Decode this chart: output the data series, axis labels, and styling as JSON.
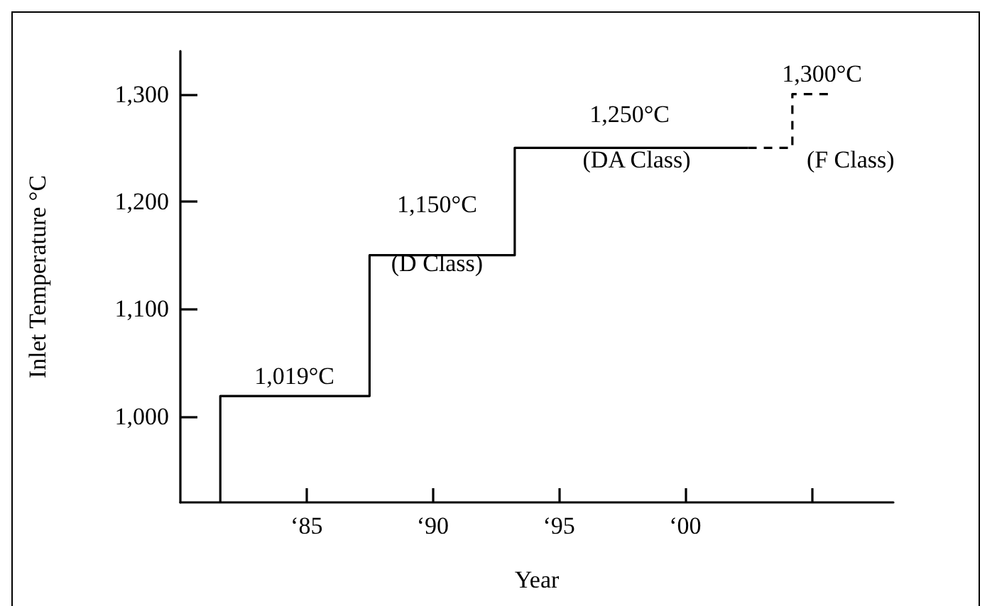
{
  "chart_data": {
    "type": "step",
    "xlabel": "Year",
    "ylabel": "Inlet Temperature °C",
    "xlim": [
      "1980-01",
      "2008-04"
    ],
    "ylim": [
      920,
      1340
    ],
    "xticks": [
      {
        "value": "1985",
        "label": "‘85"
      },
      {
        "value": "1990",
        "label": "‘90"
      },
      {
        "value": "1995",
        "label": "‘95"
      },
      {
        "value": "2000",
        "label": "‘00"
      },
      {
        "value": "2005",
        "label": null
      }
    ],
    "yticks": [
      {
        "value": 1000,
        "label": "1,000"
      },
      {
        "value": 1100,
        "label": "1,100"
      },
      {
        "value": 1200,
        "label": "1,200"
      },
      {
        "value": 1300,
        "label": "1,300"
      }
    ],
    "series": [
      {
        "color": "#000000",
        "line_style": "solid",
        "x": [
          "1981-08",
          "1981-08",
          "1987-07",
          "1993-04",
          "2002-07"
        ],
        "values": [
          920,
          1019,
          1150,
          1250,
          1250
        ]
      },
      {
        "color": "#000000",
        "line_style": "dashed",
        "x": [
          "2002-07",
          "2004-04",
          "2005-10"
        ],
        "values": [
          1250,
          1300,
          1300
        ]
      }
    ],
    "annotations": [
      "1,019°C",
      "1,150°C",
      "(D Class)",
      "1,250°C",
      "(DA Class)",
      "1,300°C",
      "(F Class)"
    ],
    "grid": false,
    "marker": "none"
  }
}
